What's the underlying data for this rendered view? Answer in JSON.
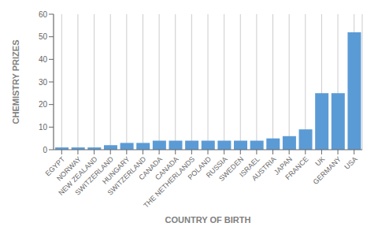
{
  "chart_data": {
    "type": "bar",
    "categories": [
      "EGYPT",
      "NORWAY",
      "NEW ZEALAND",
      "SWITZERLAND",
      "HUNGARY",
      "SWITZERLAND",
      "CANADA",
      "CANADA",
      "THE NETHERLANDS",
      "POLAND",
      "RUSSIA",
      "SWEDEN",
      "ISRAEL",
      "AUSTRIA",
      "JAPAN",
      "FRANCE",
      "UK",
      "GERMANY",
      "USA"
    ],
    "values": [
      1,
      1,
      1,
      2,
      3,
      3,
      4,
      4,
      4,
      4,
      4,
      4,
      4,
      5,
      6,
      9,
      25,
      25,
      52
    ],
    "color": "#5b9bd5",
    "x_label": "COUNTRY OF BIRTH",
    "y_label": "CHEMISTRY PRIZES",
    "ylim": [
      0,
      60
    ],
    "yticks": [
      0,
      10,
      20,
      30,
      40,
      50,
      60
    ],
    "grid": true
  }
}
